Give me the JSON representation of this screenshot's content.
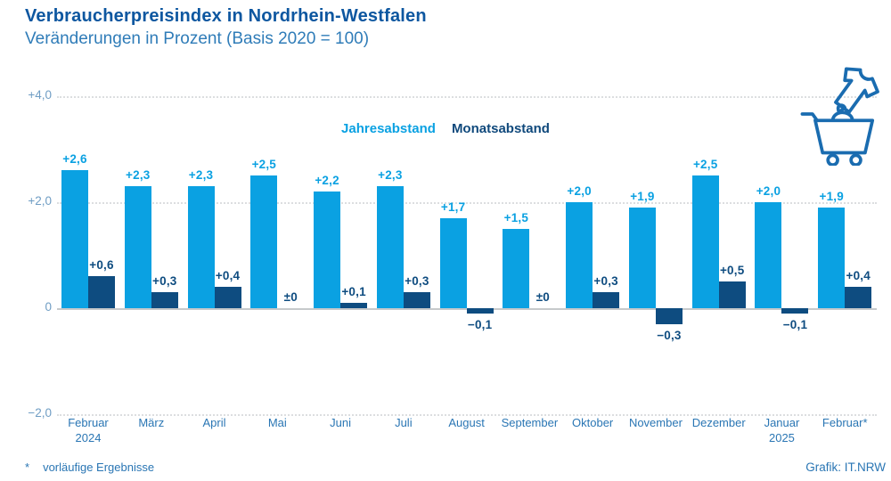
{
  "header": {
    "title": "Verbraucherpreisindex in Nordrhein-Westfalen",
    "subtitle": "Veränderungen in Prozent (Basis 2020 = 100)",
    "title_color": "#0d57a0",
    "subtitle_color": "#2f7cb8"
  },
  "legend": {
    "items": [
      {
        "label": "Jahresabstand",
        "color": "#0aa1e2"
      },
      {
        "label": "Monatsabstand",
        "color": "#10497c"
      }
    ]
  },
  "footer": {
    "note_marker": "*",
    "note": "vorläufige Ergebnisse",
    "credit": "Grafik: IT.NRW"
  },
  "icon": {
    "name": "clothing-shopping-cart-icon",
    "color": "#1a6cb0"
  },
  "chart_data": {
    "type": "bar",
    "title": "Verbraucherpreisindex in Nordrhein-Westfalen",
    "subtitle": "Veränderungen in Prozent (Basis 2020 = 100)",
    "unit": "percent",
    "categories": [
      "Februar\n2024",
      "März",
      "April",
      "Mai",
      "Juni",
      "Juli",
      "August",
      "September",
      "Oktober",
      "November",
      "Dezember",
      "Januar\n2025",
      "Februar*"
    ],
    "series": [
      {
        "name": "Jahresabstand",
        "color": "#0aa1e2",
        "values": [
          2.6,
          2.3,
          2.3,
          2.5,
          2.2,
          2.3,
          1.7,
          1.5,
          2.0,
          1.9,
          2.5,
          2.0,
          1.9
        ],
        "labels": [
          "+2,6",
          "+2,3",
          "+2,3",
          "+2,5",
          "+2,2",
          "+2,3",
          "+1,7",
          "+1,5",
          "+2,0",
          "+1,9",
          "+2,5",
          "+2,0",
          "+1,9"
        ]
      },
      {
        "name": "Monatsabstand",
        "color": "#0e4c80",
        "values": [
          0.6,
          0.3,
          0.4,
          0,
          0.1,
          0.3,
          -0.1,
          0,
          0.3,
          -0.3,
          0.5,
          -0.1,
          0.4
        ],
        "labels": [
          "+0,6",
          "+0,3",
          "+0,4",
          "±0",
          "+0,1",
          "+0,3",
          "−0,1",
          "±0",
          "+0,3",
          "−0,3",
          "+0,5",
          "−0,1",
          "+0,4"
        ]
      }
    ],
    "ylim": [
      -2,
      4
    ],
    "yticks": [
      {
        "label": "+4,0",
        "value": 4
      },
      {
        "label": "+2,0",
        "value": 2
      },
      {
        "label": "0",
        "value": 0
      },
      {
        "label": "−2,0",
        "value": -2
      }
    ],
    "grid": "horizontal dotted, solid zero line",
    "legend_position": "top-center"
  }
}
